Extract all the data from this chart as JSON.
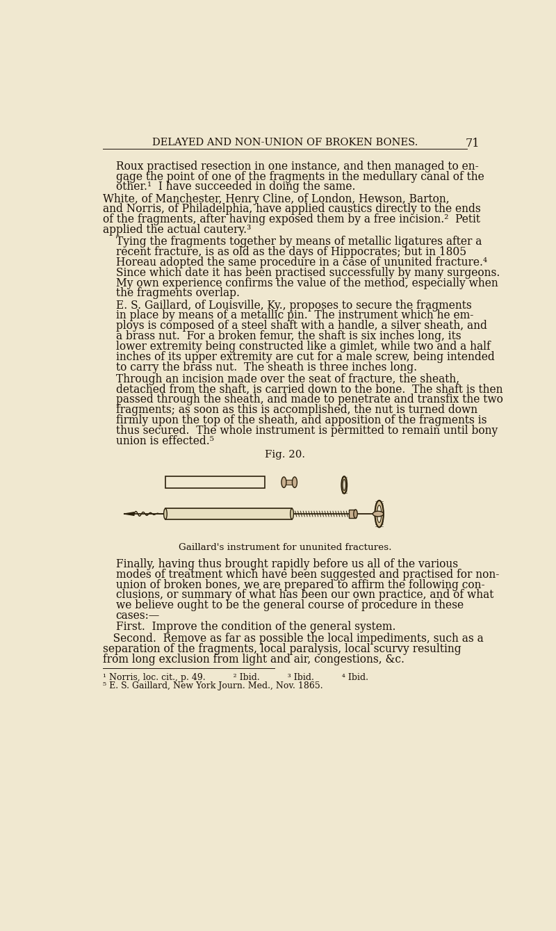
{
  "bg_color": "#f0e8d0",
  "text_color": "#1a1008",
  "header_text": "DELAYED AND NON-UNION OF BROKEN BONES.",
  "page_number": "71",
  "header_fontsize": 10.5,
  "body_fontsize": 11.2,
  "fig_label": "Fig. 20.",
  "fig_caption": "Gaillard's instrument for ununited fractures.",
  "paragraphs": [
    {
      "indent": true,
      "text": "Roux practised resection in one instance, and then managed to en-\ngage the point of one of the fragments in the medullary canal of the\nother.¹  I have succeeded in doing the same."
    },
    {
      "indent": false,
      "text": "White, of Manchester, Henry Cline, of London, Hewson, Barton,\nand Norris, of Philadelphia, have applied caustics directly to the ends\nof the fragments, after having exposed them by a free incision.²  Petit\napplied the actual cautery.³"
    },
    {
      "indent": true,
      "text": "Tying the fragments together by means of metallic ligatures after a\nrecent fracture, is as old as the days of Hippocrates; but in 1805\nHoreau adopted the same procedure in a case of ununited fracture.⁴\nSince which date it has been practised successfully by many surgeons.\nMy own experience confirms the value of the method, especially when\nthe fragments overlap."
    },
    {
      "indent": true,
      "text": "E. S. Gaillard, of Louisville, Ky., proposes to secure the fragments\nin place by means of a metallic pin.  The instrument which he em-\nploys is composed of a steel shaft with a handle, a silver sheath, and\na brass nut.  For a broken femur, the shaft is six inches long, its\nlower extremity being constructed like a gimlet, while two and a half\ninches of its upper extremity are cut for a male screw, being intended\nto carry the brass nut.  The sheath is three inches long."
    },
    {
      "indent": true,
      "text": "Through an incision made over the seat of fracture, the sheath,\ndetached from the shaft, is carried down to the bone.  The shaft is then\npassed through the sheath, and made to penetrate and transfix the two\nfragments; as soon as this is accomplished, the nut is turned down\nfirmly upon the top of the sheath, and apposition of the fragments is\nthus secured.  The whole instrument is permitted to remain until bony\nunion is effected.⁵"
    },
    {
      "indent": false,
      "text": "Finally, having thus brought rapidly before us all of the various\nmodes of treatment which have been suggested and practised for non-\nunion of broken bones, we are prepared to affirm the following con-\nclusions, or summary of what has been our own practice, and of what\nwe believe ought to be the general course of procedure in these\ncases:—"
    },
    {
      "indent": true,
      "text": "First.  Improve the condition of the general system."
    },
    {
      "indent": false,
      "text": "   Second.  Remove as far as possible the local impediments, such as a\nseparation of the fragments, local paralysis, local scurvy resulting\nfrom long exclusion from light and air, congestions, &c."
    }
  ],
  "footnotes": [
    "¹ Norris, loc. cit., p. 49.          ² Ibid.          ³ Ibid.          ⁴ Ibid.",
    "⁵ E. S. Gaillard, New York Journ. Med., Nov. 1865."
  ]
}
